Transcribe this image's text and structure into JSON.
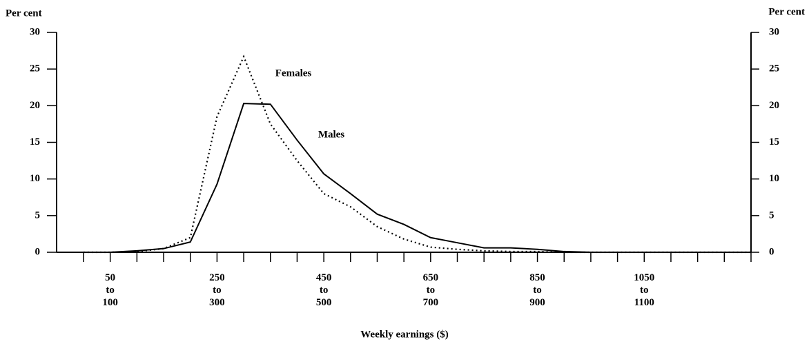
{
  "chart_data": {
    "type": "line",
    "ylabel": "Per cent",
    "y2label": "Per cent",
    "xlabel": "Weekly earnings ($)",
    "categories": [
      null,
      "50 to 100",
      null,
      null,
      null,
      "250 to 300",
      null,
      null,
      null,
      "450 to 500",
      null,
      null,
      null,
      "650 to 700",
      null,
      null,
      null,
      "850 to 900",
      null,
      null,
      null,
      "1050 to 1100",
      null,
      null,
      null,
      null
    ],
    "series": [
      {
        "name": "Males",
        "color": "#000000",
        "dash": "solid",
        "values": [
          0,
          0,
          0.2,
          0.5,
          1.4,
          9.3,
          20.3,
          20.2,
          15.3,
          10.7,
          8.0,
          5.2,
          3.8,
          2.0,
          1.3,
          0.6,
          0.6,
          0.4,
          0.1,
          0,
          0,
          0,
          0,
          0,
          0,
          0
        ]
      },
      {
        "name": "Females",
        "color": "#000000",
        "dash": "dotted",
        "values": [
          0,
          0,
          0.1,
          0.5,
          2.0,
          18.5,
          26.7,
          17.5,
          12.5,
          8.0,
          6.2,
          3.5,
          1.8,
          0.7,
          0.4,
          0.2,
          0.1,
          0.1,
          0,
          0,
          0,
          0,
          0,
          0,
          0,
          0
        ]
      }
    ],
    "ylim": [
      0,
      30
    ],
    "yticks": [
      0,
      5,
      10,
      15,
      20,
      25,
      30
    ],
    "y2lim": [
      0,
      30
    ],
    "y2ticks": [
      0,
      5,
      10,
      15,
      20,
      25,
      30
    ],
    "grid": false
  }
}
